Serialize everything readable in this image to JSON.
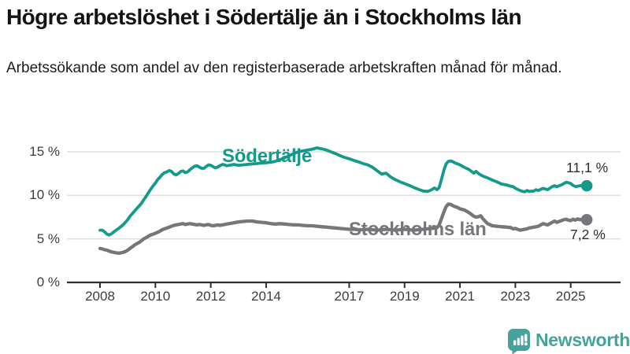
{
  "header": {
    "title": "Högre arbetslöshet i Södertälje än i Stockholms län",
    "subtitle": "Arbetssökande som andel av den registerbaserade arbetskraften månad för månad."
  },
  "branding": {
    "name": "Newsworthy",
    "icon": "bar-chart-speech-bubble-icon",
    "color": "#47a29c"
  },
  "chart": {
    "colors": {
      "sodertalje_line": "#149a8d",
      "stockholm_line": "#76767b",
      "gridline": "#e1e1e1",
      "axis": "#2f2f2f",
      "tick_label": "#3c3c3c",
      "end_label": "#2e2e2e"
    },
    "labels": {
      "sodertalje": "Södertälje",
      "stockholm": "Stockholms län",
      "sodertalje_end": "11,1 %",
      "stockholm_end": "7,2 %"
    }
  },
  "chart_data": {
    "type": "line",
    "title": "Högre arbetslöshet i Södertälje än i Stockholms län",
    "subtitle": "Arbetssökande som andel av den registerbaserade arbetskraften månad för månad.",
    "unit": "%",
    "grid": "horizontal",
    "legend": "inline-labels",
    "ylim": [
      0,
      16.3
    ],
    "y_ticks": {
      "values": [
        0,
        5,
        10,
        15
      ],
      "labels": [
        "0 %",
        "5 %",
        "10 %",
        "15 %"
      ]
    },
    "x_ticks": {
      "values": [
        2008,
        2010,
        2012,
        2014,
        2017,
        2019,
        2021,
        2023,
        2025
      ],
      "labels": [
        "2008",
        "2010",
        "2012",
        "2014",
        "2017",
        "2019",
        "2021",
        "2023",
        "2025"
      ]
    },
    "end_values": [
      {
        "series": "Södertälje",
        "value": 11.1,
        "label": "11,1 %"
      },
      {
        "series": "Stockholms län",
        "value": 7.2,
        "label": "7,2 %"
      }
    ],
    "x": [
      2008.0,
      2008.08,
      2008.17,
      2008.25,
      2008.33,
      2008.42,
      2008.5,
      2008.58,
      2008.67,
      2008.75,
      2008.83,
      2008.92,
      2009.0,
      2009.08,
      2009.17,
      2009.25,
      2009.33,
      2009.42,
      2009.5,
      2009.58,
      2009.67,
      2009.75,
      2009.83,
      2009.92,
      2010.0,
      2010.08,
      2010.17,
      2010.25,
      2010.33,
      2010.42,
      2010.5,
      2010.58,
      2010.67,
      2010.75,
      2010.83,
      2010.92,
      2011.0,
      2011.08,
      2011.17,
      2011.25,
      2011.33,
      2011.42,
      2011.5,
      2011.58,
      2011.67,
      2011.75,
      2011.83,
      2011.92,
      2012.0,
      2012.08,
      2012.17,
      2012.25,
      2012.33,
      2012.42,
      2012.5,
      2012.58,
      2012.67,
      2012.75,
      2012.83,
      2012.92,
      2013.0,
      2013.17,
      2013.33,
      2013.5,
      2013.67,
      2013.83,
      2014.0,
      2014.17,
      2014.33,
      2014.5,
      2014.67,
      2014.83,
      2015.0,
      2015.17,
      2015.33,
      2015.5,
      2015.67,
      2015.83,
      2016.0,
      2016.17,
      2016.33,
      2016.5,
      2016.67,
      2016.83,
      2017.0,
      2017.17,
      2017.33,
      2017.5,
      2017.67,
      2017.83,
      2018.0,
      2018.17,
      2018.33,
      2018.5,
      2018.67,
      2018.83,
      2019.0,
      2019.17,
      2019.33,
      2019.5,
      2019.67,
      2019.83,
      2019.92,
      2020.0,
      2020.08,
      2020.17,
      2020.25,
      2020.33,
      2020.42,
      2020.5,
      2020.58,
      2020.67,
      2020.75,
      2020.83,
      2020.92,
      2021.0,
      2021.17,
      2021.33,
      2021.5,
      2021.58,
      2021.67,
      2021.75,
      2021.83,
      2021.92,
      2022.0,
      2022.17,
      2022.33,
      2022.5,
      2022.67,
      2022.83,
      2022.92,
      2023.0,
      2023.17,
      2023.33,
      2023.42,
      2023.5,
      2023.67,
      2023.75,
      2023.83,
      2023.92,
      2024.0,
      2024.17,
      2024.33,
      2024.42,
      2024.5,
      2024.67,
      2024.75,
      2024.83,
      2024.92,
      2025.0,
      2025.08,
      2025.17,
      2025.25,
      2025.33,
      2025.42,
      2025.5,
      2025.58
    ],
    "series": [
      {
        "name": "Södertälje",
        "color": "#149a8d",
        "values": [
          6.0,
          6.0,
          5.8,
          5.55,
          5.45,
          5.6,
          5.8,
          6.0,
          6.2,
          6.4,
          6.6,
          6.9,
          7.2,
          7.6,
          7.9,
          8.2,
          8.5,
          8.8,
          9.1,
          9.5,
          9.9,
          10.3,
          10.7,
          11.1,
          11.4,
          11.8,
          12.1,
          12.4,
          12.6,
          12.7,
          12.85,
          12.75,
          12.45,
          12.35,
          12.5,
          12.75,
          12.8,
          12.6,
          12.7,
          12.95,
          13.15,
          13.35,
          13.4,
          13.25,
          13.1,
          13.1,
          13.3,
          13.5,
          13.45,
          13.3,
          13.15,
          13.25,
          13.4,
          13.55,
          13.5,
          13.4,
          13.45,
          13.5,
          13.55,
          13.5,
          13.45,
          13.5,
          13.55,
          13.6,
          13.65,
          13.7,
          13.75,
          13.8,
          13.9,
          14.1,
          14.3,
          14.55,
          14.8,
          15.0,
          15.1,
          15.2,
          15.3,
          15.45,
          15.35,
          15.2,
          15.0,
          14.8,
          14.55,
          14.35,
          14.2,
          14.0,
          13.85,
          13.65,
          13.5,
          13.25,
          12.85,
          12.45,
          12.55,
          12.1,
          11.8,
          11.55,
          11.35,
          11.15,
          10.9,
          10.7,
          10.5,
          10.45,
          10.55,
          10.7,
          10.85,
          10.65,
          10.9,
          11.8,
          12.9,
          13.6,
          13.9,
          13.95,
          13.85,
          13.7,
          13.6,
          13.5,
          13.2,
          12.95,
          12.55,
          12.75,
          12.5,
          12.35,
          12.2,
          12.1,
          12.0,
          11.75,
          11.55,
          11.3,
          11.2,
          11.05,
          11.0,
          10.8,
          10.55,
          10.4,
          10.55,
          10.45,
          10.5,
          10.65,
          10.55,
          10.7,
          10.8,
          10.65,
          11.0,
          11.1,
          11.0,
          11.2,
          11.35,
          11.5,
          11.45,
          11.35,
          11.15,
          11.0,
          11.05,
          11.1,
          11.15,
          11.15,
          11.1
        ]
      },
      {
        "name": "Stockholms län",
        "color": "#76767b",
        "values": [
          3.9,
          3.85,
          3.75,
          3.7,
          3.6,
          3.5,
          3.45,
          3.4,
          3.35,
          3.4,
          3.45,
          3.55,
          3.7,
          3.9,
          4.1,
          4.3,
          4.45,
          4.6,
          4.8,
          5.0,
          5.15,
          5.3,
          5.45,
          5.55,
          5.65,
          5.75,
          5.9,
          6.05,
          6.15,
          6.25,
          6.35,
          6.45,
          6.55,
          6.6,
          6.65,
          6.7,
          6.75,
          6.65,
          6.7,
          6.75,
          6.7,
          6.65,
          6.6,
          6.65,
          6.6,
          6.55,
          6.6,
          6.65,
          6.55,
          6.5,
          6.55,
          6.6,
          6.55,
          6.6,
          6.65,
          6.7,
          6.75,
          6.8,
          6.85,
          6.9,
          6.95,
          7.0,
          7.05,
          7.05,
          6.95,
          6.9,
          6.85,
          6.75,
          6.7,
          6.75,
          6.7,
          6.65,
          6.6,
          6.6,
          6.55,
          6.5,
          6.5,
          6.45,
          6.4,
          6.35,
          6.3,
          6.25,
          6.2,
          6.15,
          6.1,
          6.1,
          6.05,
          6.05,
          6.1,
          6.05,
          6.0,
          6.05,
          6.1,
          6.05,
          6.0,
          6.05,
          6.1,
          6.05,
          6.0,
          6.05,
          6.1,
          6.15,
          6.2,
          6.2,
          6.25,
          6.3,
          6.6,
          7.3,
          8.1,
          8.7,
          9.0,
          8.95,
          8.8,
          8.7,
          8.6,
          8.45,
          8.3,
          8.0,
          7.6,
          7.5,
          7.55,
          7.65,
          7.3,
          7.0,
          6.75,
          6.5,
          6.45,
          6.4,
          6.35,
          6.3,
          6.15,
          6.2,
          6.0,
          6.1,
          6.15,
          6.25,
          6.35,
          6.4,
          6.45,
          6.6,
          6.75,
          6.6,
          6.9,
          7.05,
          6.9,
          7.1,
          7.2,
          7.25,
          7.15,
          7.1,
          7.25,
          7.15,
          7.3,
          7.2,
          7.25,
          7.2,
          7.2
        ]
      }
    ]
  }
}
